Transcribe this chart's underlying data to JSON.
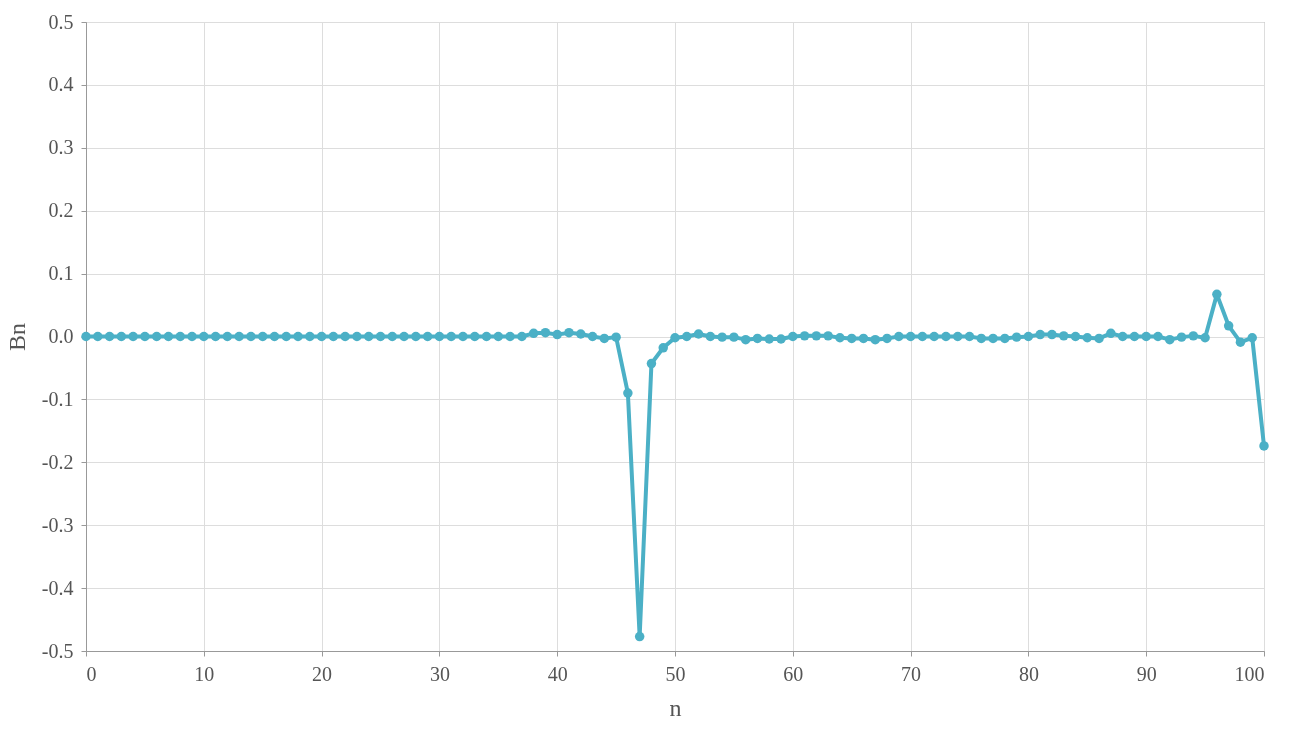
{
  "chart_data": {
    "type": "line",
    "xlabel": "n",
    "ylabel": "Bn",
    "x": [
      0,
      1,
      2,
      3,
      4,
      5,
      6,
      7,
      8,
      9,
      10,
      11,
      12,
      13,
      14,
      15,
      16,
      17,
      18,
      19,
      20,
      21,
      22,
      23,
      24,
      25,
      26,
      27,
      28,
      29,
      30,
      31,
      32,
      33,
      34,
      35,
      36,
      37,
      38,
      39,
      40,
      41,
      42,
      43,
      44,
      45,
      46,
      47,
      48,
      49,
      50,
      51,
      52,
      53,
      54,
      55,
      56,
      57,
      58,
      59,
      60,
      61,
      62,
      63,
      64,
      65,
      66,
      67,
      68,
      69,
      70,
      71,
      72,
      73,
      74,
      75,
      76,
      77,
      78,
      79,
      80,
      81,
      82,
      83,
      84,
      85,
      86,
      87,
      88,
      89,
      90,
      91,
      92,
      93,
      94,
      95,
      96,
      97,
      98,
      99,
      100
    ],
    "series": [
      {
        "color": "#4bb0c6",
        "values": [
          0,
          0,
          0,
          0,
          0,
          0,
          0,
          0,
          0,
          0,
          0,
          0,
          0,
          0,
          0,
          0,
          0,
          0,
          0,
          0,
          0,
          0,
          0,
          0,
          0,
          0,
          0,
          0,
          0,
          0,
          0,
          0,
          0,
          0,
          0,
          0,
          0,
          0,
          0.005,
          0.006,
          0.003,
          0.006,
          0.004,
          0,
          -0.003,
          -0.001,
          -0.09,
          -0.477,
          -0.043,
          -0.018,
          -0.002,
          0,
          0.004,
          0,
          -0.001,
          -0.001,
          -0.005,
          -0.003,
          -0.004,
          -0.004,
          0,
          0.001,
          0.001,
          0.001,
          -0.002,
          -0.003,
          -0.003,
          -0.005,
          -0.003,
          0,
          0,
          0,
          0,
          0,
          0,
          0,
          -0.003,
          -0.003,
          -0.003,
          -0.001,
          0,
          0.003,
          0.003,
          0.001,
          0,
          -0.002,
          -0.003,
          0.005,
          0,
          0,
          0,
          0,
          -0.005,
          -0.001,
          0.001,
          -0.002,
          0.067,
          0.017,
          -0.009,
          -0.002,
          -0.174
        ]
      }
    ],
    "xlim": [
      0,
      100
    ],
    "xticks": [
      0,
      10,
      20,
      30,
      40,
      50,
      60,
      70,
      80,
      90,
      100
    ],
    "ylim": [
      -0.5,
      0.5
    ],
    "yticks": [
      {
        "value": -0.5,
        "label": "-0.5"
      },
      {
        "value": -0.4,
        "label": "-0.4"
      },
      {
        "value": -0.3,
        "label": "-0.3"
      },
      {
        "value": -0.2,
        "label": "-0.2"
      },
      {
        "value": -0.1,
        "label": "-0.1"
      },
      {
        "value": 0,
        "label": "0.0"
      },
      {
        "value": 0.1,
        "label": "0.1"
      },
      {
        "value": 0.2,
        "label": "0.2"
      },
      {
        "value": 0.3,
        "label": "0.3"
      },
      {
        "value": 0.4,
        "label": "0.4"
      },
      {
        "value": 0.5,
        "label": "0.5"
      }
    ],
    "grid": true,
    "marker": "circle",
    "line_style": "solid"
  }
}
